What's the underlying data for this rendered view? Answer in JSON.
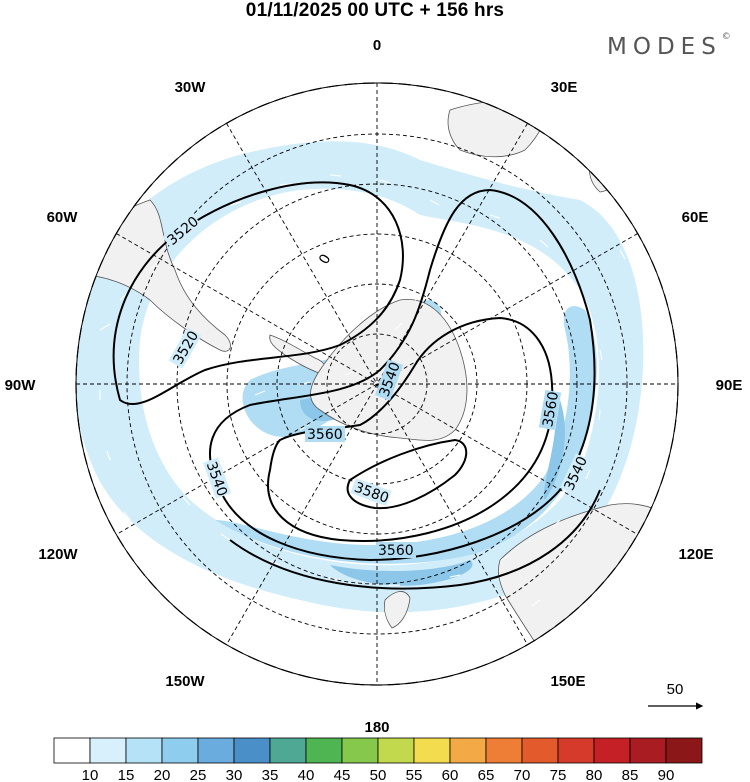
{
  "title": "01/11/2025  00 UTC  + 156 hrs",
  "brand": "MODES",
  "brand_mark": "©",
  "meridian_labels": [
    "0",
    "30E",
    "60E",
    "90E",
    "120E",
    "150E",
    "180",
    "150W",
    "120W",
    "90W",
    "60W",
    "30W"
  ],
  "contour_labels": [
    "3520",
    "3520",
    "3540",
    "3540",
    "3540",
    "3560",
    "3560",
    "3560",
    "3580",
    "0"
  ],
  "vector_scale": {
    "label": "50"
  },
  "colorbar": {
    "ticks": [
      "10",
      "15",
      "20",
      "25",
      "30",
      "35",
      "40",
      "45",
      "50",
      "55",
      "60",
      "65",
      "70",
      "75",
      "80",
      "85",
      "90"
    ],
    "colors": [
      "#ffffff",
      "#d7f0fb",
      "#b5e2f7",
      "#8fcdef",
      "#6aacde",
      "#4b8fc8",
      "#4ea893",
      "#4fb552",
      "#86c84c",
      "#c2d94d",
      "#f4dc4f",
      "#f3aa46",
      "#ee7e36",
      "#e35a2c",
      "#d63a2a",
      "#c42026",
      "#a81c22",
      "#8c1718"
    ]
  },
  "colors": {
    "land": "#f1f1f1",
    "wind_light": "#d2edfa",
    "wind_mid": "#b0dcf4",
    "wind_strong": "#8cc7ea",
    "contour": "#000000"
  }
}
